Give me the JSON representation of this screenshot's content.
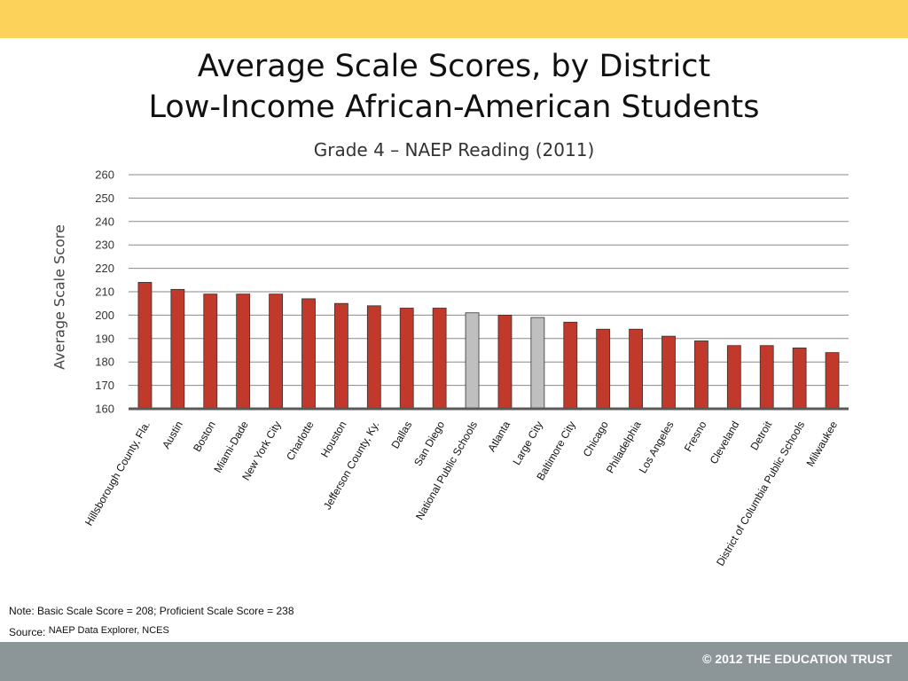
{
  "header": {
    "title_line1": "Average Scale Scores, by District",
    "title_line2": "Low-Income African-American Students",
    "subtitle": "Grade 4 – NAEP Reading (2011)"
  },
  "chart_data": {
    "type": "bar",
    "title": "Average Scale Scores, by District Low-Income African-American Students",
    "subtitle": "Grade 4 – NAEP Reading (2011)",
    "ylabel": "Average Scale Score",
    "xlabel": "",
    "ylim": [
      160,
      260
    ],
    "yticks": [
      160,
      170,
      180,
      190,
      200,
      210,
      220,
      230,
      240,
      250,
      260
    ],
    "grid": true,
    "categories": [
      "Hillsborough County, Fla.",
      "Austin",
      "Boston",
      "Miami-Dade",
      "New York City",
      "Charlotte",
      "Houston",
      "Jefferson County, Ky.",
      "Dallas",
      "San Diego",
      "National Public Schools",
      "Atlanta",
      "Large City",
      "Baltimore City",
      "Chicago",
      "Philadelphia",
      "Los Angeles",
      "Fresno",
      "Cleveland",
      "Detroit",
      "District of Columbia Public Schools",
      "Milwaukee"
    ],
    "values": [
      214,
      211,
      209,
      209,
      209,
      207,
      205,
      204,
      203,
      203,
      201,
      200,
      199,
      197,
      194,
      194,
      191,
      189,
      187,
      187,
      186,
      184
    ],
    "highlighted": [
      "National Public Schools",
      "Large City"
    ],
    "colors": {
      "district": "#c0392b",
      "benchmark": "#bfbfbf"
    }
  },
  "footer": {
    "note": "Note: Basic Scale Score = 208; Proficient Scale Score = 238",
    "source_label": "Source:",
    "source_text": "NAEP Data Explorer, NCES",
    "copyright": "© 2012 THE EDUCATION TRUST"
  }
}
